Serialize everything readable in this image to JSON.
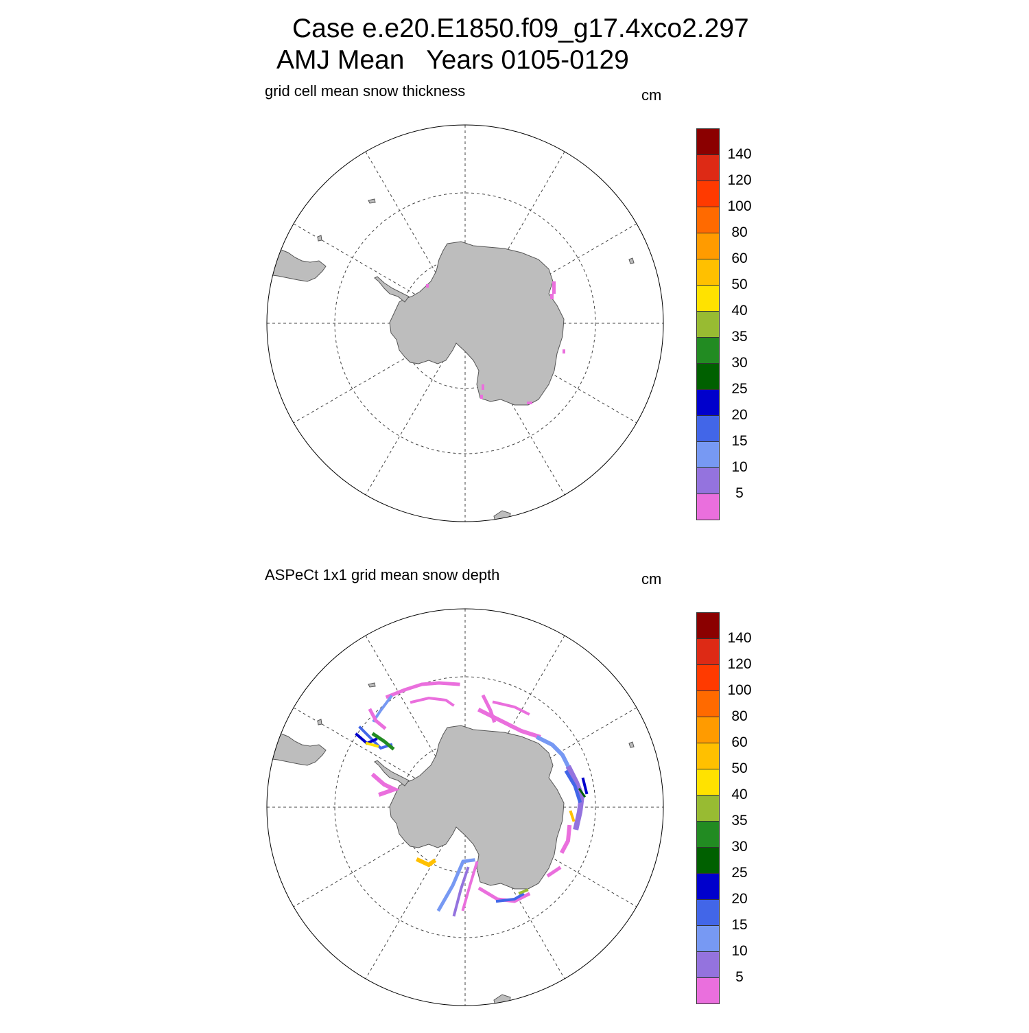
{
  "title": {
    "line1": "Case e.e20.E1850.f09_g17.4xco2.297",
    "line2": "AMJ Mean   Years 0105-0129"
  },
  "panels": [
    {
      "label": "grid cell mean snow thickness",
      "units": "cm"
    },
    {
      "label": "ASPeCt 1x1 grid mean snow depth",
      "units": "cm"
    }
  ],
  "colorbar": {
    "colors": [
      "#ea6fdd",
      "#9473de",
      "#7799f3",
      "#4266e8",
      "#0000cc",
      "#006000",
      "#228b22",
      "#98bb32",
      "#ffe200",
      "#ffc000",
      "#ff9b00",
      "#ff6a00",
      "#ff3a00",
      "#dd2a15",
      "#8b0000"
    ],
    "labels": [
      "5",
      "10",
      "15",
      "20",
      "25",
      "30",
      "35",
      "40",
      "50",
      "60",
      "80",
      "100",
      "120",
      "140"
    ]
  },
  "map_style": {
    "land": "#bdbdbd",
    "coast": "#555555",
    "grid": "#444444"
  }
}
